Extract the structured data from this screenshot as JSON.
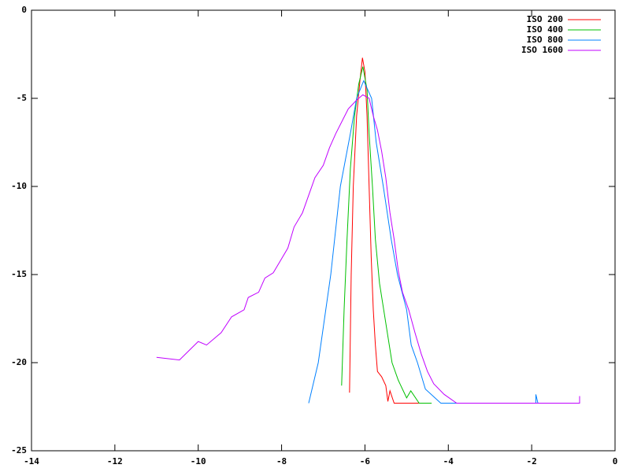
{
  "chart_data": {
    "type": "line",
    "xlim": [
      -14,
      0
    ],
    "ylim": [
      -25,
      0
    ],
    "xticks": [
      -14,
      -12,
      -10,
      -8,
      -6,
      -4,
      -2,
      0
    ],
    "yticks": [
      -25,
      -20,
      -15,
      -10,
      -5,
      0
    ],
    "legend": "top right",
    "grid": false,
    "series": [
      {
        "name": "ISO 200",
        "color": "#ff0000",
        "x": [
          -6.37,
          -6.33,
          -6.28,
          -6.2,
          -6.12,
          -6.06,
          -6.0,
          -5.95,
          -5.9,
          -5.85,
          -5.8,
          -5.75,
          -5.7,
          -5.6,
          -5.5,
          -5.45,
          -5.4,
          -5.3,
          -5.0,
          -4.6
        ],
        "values": [
          -21.7,
          -15,
          -10,
          -6,
          -4,
          -2.7,
          -3.5,
          -6,
          -10,
          -14,
          -17,
          -19,
          -20.5,
          -20.8,
          -21.3,
          -22.2,
          -21.6,
          -22.3,
          -22.3,
          -22.3
        ]
      },
      {
        "name": "ISO 400",
        "color": "#00c000",
        "x": [
          -6.56,
          -6.5,
          -6.43,
          -6.35,
          -6.25,
          -6.15,
          -6.05,
          -5.95,
          -5.9,
          -5.82,
          -5.75,
          -5.65,
          -5.55,
          -5.45,
          -5.35,
          -5.2,
          -5.1,
          -5.0,
          -4.9,
          -4.7,
          -4.4
        ],
        "values": [
          -21.3,
          -17,
          -13,
          -9,
          -6,
          -4.2,
          -3.2,
          -4.5,
          -7,
          -10,
          -13,
          -15.5,
          -17,
          -18.5,
          -20,
          -21,
          -21.5,
          -22,
          -21.6,
          -22.3,
          -22.3
        ]
      },
      {
        "name": "ISO 800",
        "color": "#0080ff",
        "x": [
          -7.35,
          -7.12,
          -6.82,
          -6.59,
          -6.35,
          -6.2,
          -6.03,
          -5.84,
          -5.73,
          -5.56,
          -5.37,
          -5.22,
          -5.0,
          -4.89,
          -4.74,
          -4.55,
          -4.18,
          -3.0,
          -1.9,
          -1.9,
          -1.85
        ],
        "values": [
          -22.3,
          -20,
          -15,
          -10,
          -7,
          -5,
          -4,
          -5,
          -7.5,
          -10,
          -13,
          -15,
          -17,
          -19,
          -20,
          -21.5,
          -22.3,
          -22.3,
          -22.3,
          -21.8,
          -22.3
        ]
      },
      {
        "name": "ISO 1600",
        "color": "#c000ff",
        "x": [
          -11.0,
          -10.45,
          -10.0,
          -9.8,
          -9.45,
          -9.2,
          -8.9,
          -8.8,
          -8.55,
          -8.4,
          -8.2,
          -8.05,
          -7.85,
          -7.7,
          -7.5,
          -7.35,
          -7.2,
          -7.0,
          -6.85,
          -6.7,
          -6.55,
          -6.4,
          -6.2,
          -6.05,
          -5.9,
          -5.8,
          -5.7,
          -5.6,
          -5.5,
          -5.4,
          -5.3,
          -5.2,
          -5.1,
          -4.95,
          -4.8,
          -4.65,
          -4.5,
          -4.35,
          -4.1,
          -3.8,
          -2.0,
          -0.85,
          -0.85
        ],
        "values": [
          -19.7,
          -19.85,
          -18.8,
          -19.0,
          -18.3,
          -17.4,
          -17.0,
          -16.3,
          -16.0,
          -15.2,
          -14.9,
          -14.3,
          -13.5,
          -12.3,
          -11.5,
          -10.5,
          -9.5,
          -8.8,
          -7.8,
          -7.0,
          -6.3,
          -5.6,
          -5.1,
          -4.8,
          -5.0,
          -6,
          -6.8,
          -8,
          -9.5,
          -11.5,
          -13,
          -14.8,
          -16,
          -17,
          -18.3,
          -19.5,
          -20.5,
          -21.2,
          -21.8,
          -22.3,
          -22.3,
          -22.3,
          -21.9
        ]
      }
    ]
  }
}
